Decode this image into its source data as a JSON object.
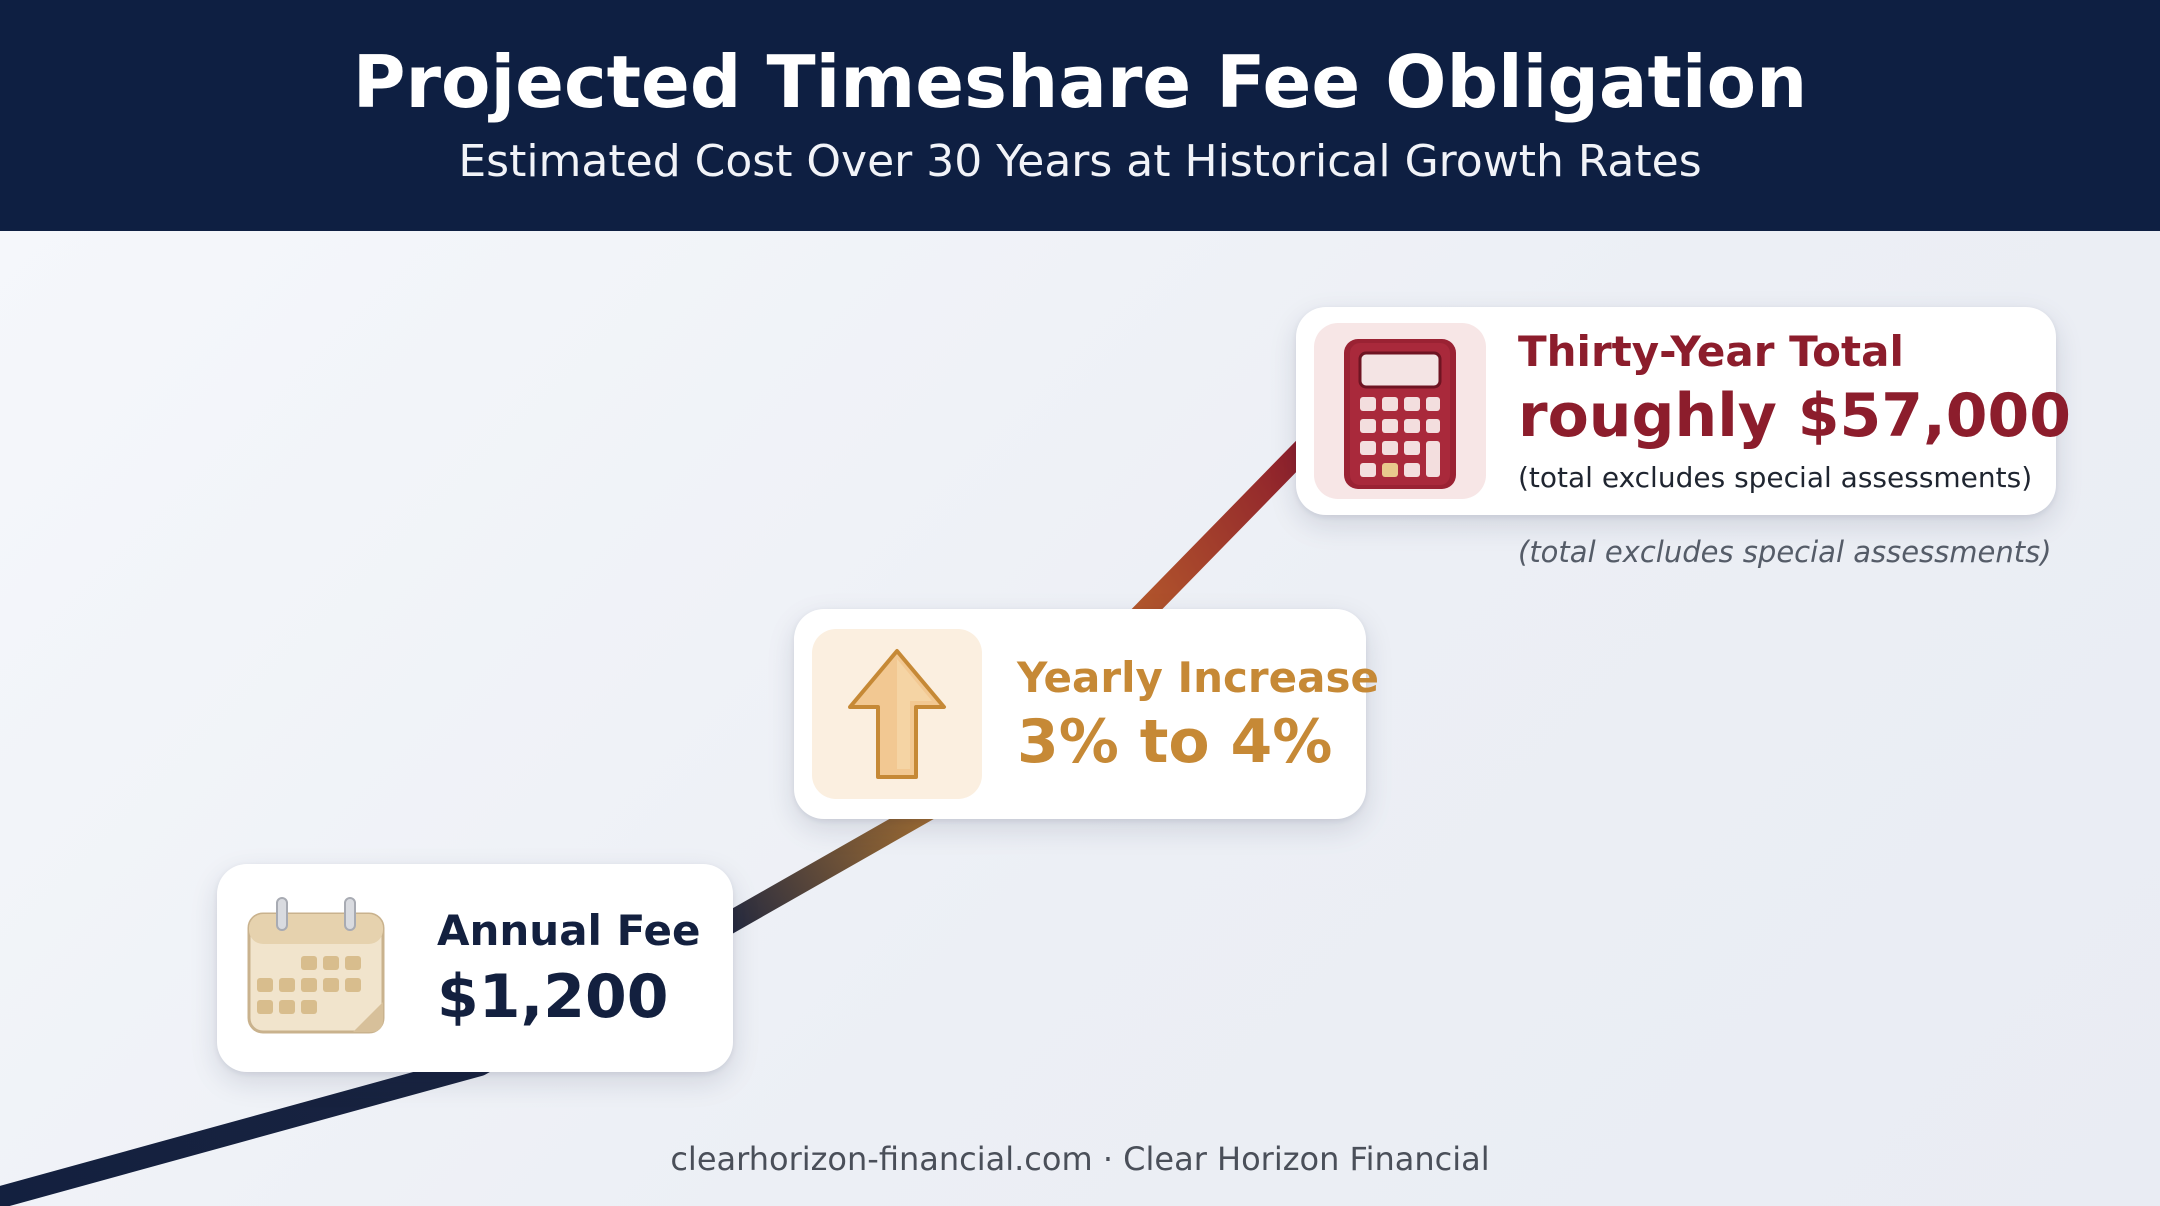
{
  "header": {
    "title": "Projected Timeshare Fee Obligation",
    "subtitle": "Estimated Cost Over 30 Years at Historical Growth Rates"
  },
  "steps": [
    {
      "label": "Annual Fee",
      "value": "$1,200",
      "icon": "calendar-icon",
      "color": "#13203f"
    },
    {
      "label": "Yearly Increase",
      "value": "3% to 4%",
      "icon": "up-arrow-icon",
      "color": "#c68936"
    },
    {
      "label": "Thirty-Year Total",
      "value": "roughly $57,000",
      "note": "(total excludes special assessments)",
      "icon": "calculator-icon",
      "color": "#8c1d2c"
    }
  ],
  "outside_note": "(total excludes special assessments)",
  "footer": "clearhorizon-financial.com · Clear Horizon Financial",
  "colors": {
    "header_bg": "#0e1f42",
    "line_start": "#13203f",
    "line_mid": "#d4892c",
    "line_end": "#8c1d2c"
  }
}
